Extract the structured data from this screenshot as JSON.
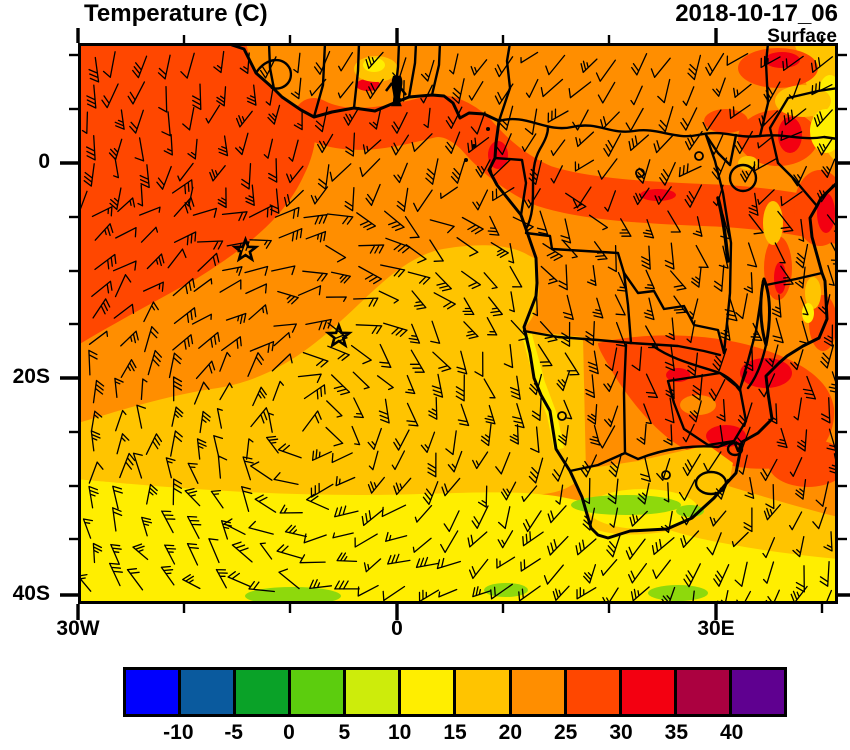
{
  "header": {
    "title": "Temperature (C)",
    "datetime": "2018-10-17_06",
    "level": "Surface"
  },
  "axes": {
    "x_tick_labels": [
      "30W",
      "0",
      "30E"
    ],
    "y_tick_labels": [
      "0",
      "20S",
      "40S"
    ]
  },
  "colorbar": {
    "units": "C",
    "tick_labels": [
      "-10",
      "-5",
      "0",
      "5",
      "10",
      "15",
      "20",
      "25",
      "30",
      "35",
      "40"
    ],
    "colors": [
      "#0000fe",
      "#0a5a9e",
      "#0aa228",
      "#5ccd0e",
      "#cdec0b",
      "#ffee00",
      "#ffc400",
      "#ff8e00",
      "#ff4700",
      "#f30011",
      "#ab0140",
      "#5f0090"
    ]
  },
  "chart_data": {
    "type": "heatmap",
    "title": "Temperature (C)",
    "timestamp": "2018-10-17_06",
    "level": "Surface",
    "variable": "surface temperature",
    "units": "C",
    "x_axis": {
      "tick_labels": [
        "30W",
        "0",
        "30E"
      ],
      "minor_tick_interval_deg": 10
    },
    "y_axis": {
      "tick_labels": [
        "0",
        "20S",
        "40S"
      ],
      "minor_tick_interval_deg": 5
    },
    "color_scale": {
      "bin_edges_c": [
        -10,
        -5,
        0,
        5,
        10,
        15,
        20,
        25,
        30,
        35,
        40
      ],
      "colors": [
        "#0000fe",
        "#0a5a9e",
        "#0aa228",
        "#5ccd0e",
        "#cdec0b",
        "#ffee00",
        "#ffc400",
        "#ff8e00",
        "#ff4700",
        "#f30011",
        "#ab0140",
        "#5f0090"
      ]
    },
    "overlays": [
      "wind-barbs",
      "coastlines",
      "country-borders",
      "storm-star-markers"
    ],
    "storm_markers_lonlat": [
      [
        -14.2,
        -8.1
      ],
      [
        -5.4,
        -16.1
      ]
    ],
    "field_pattern_summary": [
      "25-30C over tropical Atlantic northwest corner and along Guinea coast",
      "30-35C patches over East Africa, Sahel coast and southern Africa interior",
      "20-25C over central Atlantic and Congo basin",
      "15-20C over subtropical South Atlantic and Namibian coastal strip",
      "10-15C band along southern edge near 40S",
      "5-10C patches along South Africa south coast and far south ocean"
    ]
  }
}
